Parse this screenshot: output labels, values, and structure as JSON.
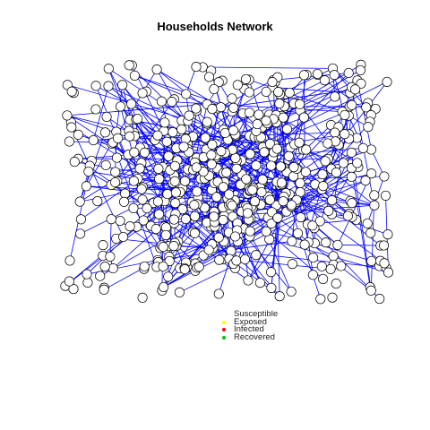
{
  "title": "Households Network",
  "graph": {
    "node_count": 520,
    "edge_count": 420,
    "edge_color": "#0000ff",
    "node_fill": "#ffffff",
    "node_stroke": "#000000"
  },
  "legend": [
    {
      "label": "Susceptible",
      "color": "#ffffff"
    },
    {
      "label": "Exposed",
      "color": "#ffff00"
    },
    {
      "label": "Infected",
      "color": "#ff0000"
    },
    {
      "label": "Recovered",
      "color": "#00c000"
    }
  ]
}
